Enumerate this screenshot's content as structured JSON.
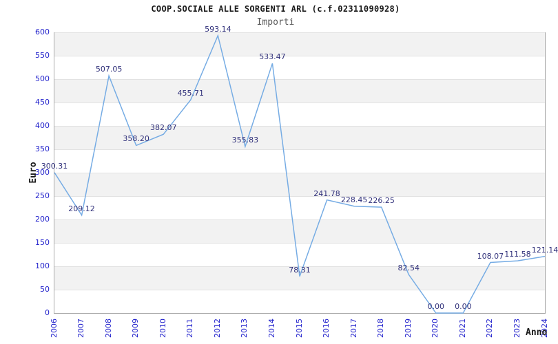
{
  "chart_data": {
    "type": "line",
    "title": "COOP.SOCIALE ALLE SORGENTI ARL (c.f.02311090928)",
    "subtitle": "Importi",
    "xlabel": "Anno",
    "ylabel": "Euro",
    "categories": [
      "2006",
      "2007",
      "2008",
      "2009",
      "2010",
      "2011",
      "2012",
      "2013",
      "2014",
      "2015",
      "2016",
      "2017",
      "2018",
      "2019",
      "2020",
      "2021",
      "2022",
      "2023",
      "2024"
    ],
    "values": [
      300.31,
      209.12,
      507.05,
      358.2,
      382.07,
      455.71,
      593.14,
      355.83,
      533.47,
      78.31,
      241.78,
      228.45,
      226.25,
      82.54,
      0.0,
      0.0,
      108.07,
      111.58,
      121.14
    ],
    "data_labels": [
      "300.31",
      "209.12",
      "507.05",
      "358.20",
      "382.07",
      "455.71",
      "593.14",
      "355.83",
      "533.47",
      "78.31",
      "241.78",
      "228.45",
      "226.25",
      "82.54",
      "0.00",
      "0.00",
      "108.07",
      "111.58",
      "121.14"
    ],
    "yticks": [
      0,
      50,
      100,
      150,
      200,
      250,
      300,
      350,
      400,
      450,
      500,
      550,
      600
    ],
    "ylim": [
      0,
      600
    ],
    "grid": true,
    "alternating_bands": true,
    "legend": "none",
    "colors": {
      "line": "#76ACE4",
      "tick_labels": "#2222CC",
      "data_labels": "#30307A",
      "band": "#F2F2F2",
      "gridline": "#E2E2E2",
      "axis_border": "#A8A8A8",
      "title": "#1A1A1A",
      "subtitle": "#595959",
      "axis_titles": "#1A1A1A"
    }
  }
}
